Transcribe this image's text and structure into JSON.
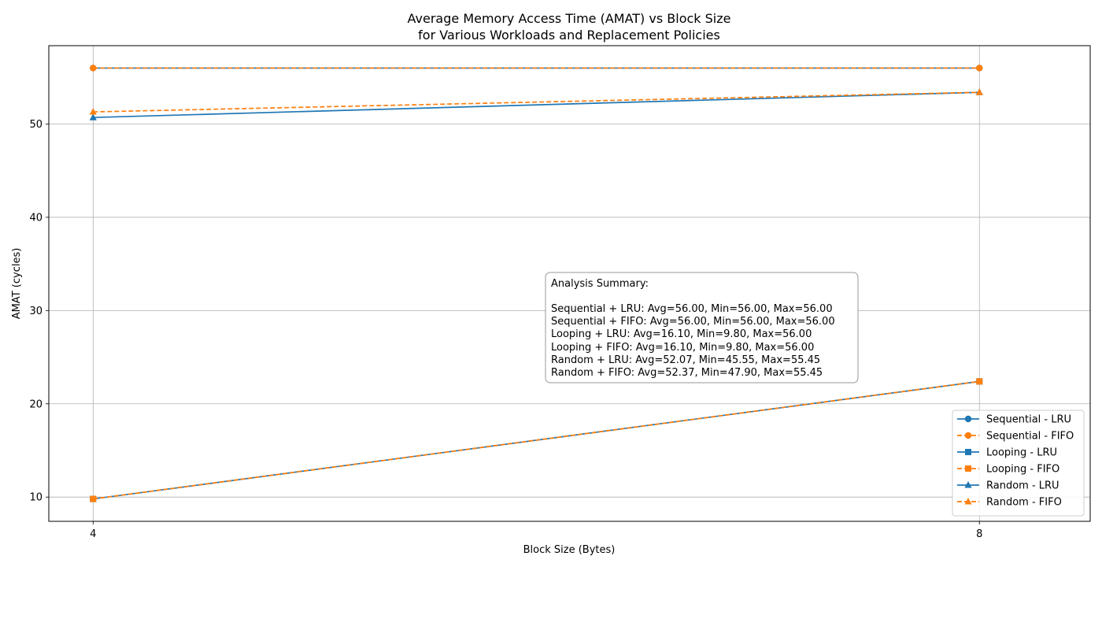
{
  "chart_data": {
    "type": "line",
    "title_lines": [
      "Average Memory Access Time (AMAT) vs Block Size",
      "for Various Workloads and Replacement Policies"
    ],
    "xlabel": "Block Size (Bytes)",
    "ylabel": "AMAT (cycles)",
    "x": [
      4,
      8
    ],
    "xlim": [
      3.8,
      8.5
    ],
    "ylim": [
      7.4,
      58.4
    ],
    "xticks": [
      4,
      8
    ],
    "yticks": [
      10,
      20,
      30,
      40,
      50
    ],
    "grid": true,
    "legend_position": "lower-right",
    "series": [
      {
        "name": "Sequential - LRU",
        "values": [
          56.0,
          56.0
        ],
        "color": "#1f77b4",
        "dash": "solid",
        "marker": "circle"
      },
      {
        "name": "Sequential - FIFO",
        "values": [
          56.0,
          56.0
        ],
        "color": "#ff7f0e",
        "dash": "dashed",
        "marker": "circle"
      },
      {
        "name": "Looping - LRU",
        "values": [
          9.8,
          22.4
        ],
        "color": "#1f77b4",
        "dash": "solid",
        "marker": "square"
      },
      {
        "name": "Looping - FIFO",
        "values": [
          9.8,
          22.4
        ],
        "color": "#ff7f0e",
        "dash": "dashed",
        "marker": "square"
      },
      {
        "name": "Random - LRU",
        "values": [
          50.7,
          53.4
        ],
        "color": "#1f77b4",
        "dash": "solid",
        "marker": "triangle"
      },
      {
        "name": "Random - FIFO",
        "values": [
          51.3,
          53.4
        ],
        "color": "#ff7f0e",
        "dash": "dashed",
        "marker": "triangle"
      }
    ],
    "annotation": {
      "header": "Analysis Summary:",
      "lines": [
        "Sequential + LRU: Avg=56.00, Min=56.00, Max=56.00",
        "Sequential + FIFO: Avg=56.00, Min=56.00, Max=56.00",
        "Looping + LRU: Avg=16.10, Min=9.80, Max=56.00",
        "Looping + FIFO: Avg=16.10, Min=9.80, Max=56.00",
        "Random + LRU: Avg=52.07, Min=45.55, Max=55.45",
        "Random + FIFO: Avg=52.37, Min=47.90, Max=55.45"
      ]
    }
  }
}
